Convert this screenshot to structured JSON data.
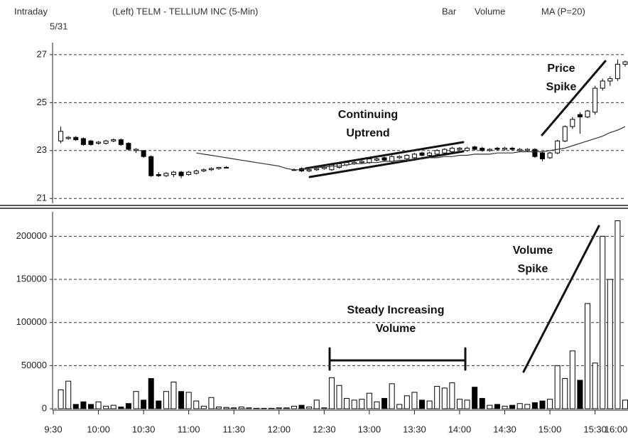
{
  "header": {
    "mode": "Intraday",
    "date": "5/31",
    "symbol": "(Left) TELM - TELLIUM INC (5-Min)",
    "style": "Bar",
    "study": "Volume",
    "ma": "MA (P=20)"
  },
  "chart_data": [
    {
      "type": "candlestick",
      "annotations": [
        [
          "Price",
          "Spike"
        ],
        [
          "Continuing",
          "Uptrend"
        ]
      ],
      "x": [
        5,
        10,
        15,
        20,
        25,
        30,
        35,
        40,
        45,
        50,
        55,
        60,
        65,
        70,
        75,
        80,
        85,
        90,
        95,
        100,
        105,
        110,
        115,
        120,
        125,
        130,
        135,
        140,
        145,
        150,
        155,
        160,
        165,
        170,
        175,
        180,
        185,
        190,
        195,
        200,
        205,
        210,
        215,
        220,
        225,
        230,
        235,
        240,
        245,
        250,
        255,
        260,
        265,
        270,
        275,
        280,
        285,
        290,
        295,
        300,
        305,
        310,
        315,
        320,
        325,
        330,
        335,
        340,
        345,
        350,
        355,
        360,
        365,
        370,
        375,
        380
      ],
      "open": [
        23.4,
        23.5,
        23.55,
        23.5,
        23.4,
        23.3,
        23.3,
        23.4,
        23.45,
        23.3,
        23.0,
        23.0,
        22.75,
        22.0,
        21.95,
        22.0,
        22.1,
        22.0,
        22.05,
        22.15,
        22.2,
        22.25,
        22.3,
        null,
        null,
        null,
        null,
        null,
        null,
        null,
        null,
        22.2,
        22.25,
        22.15,
        22.2,
        22.25,
        22.2,
        22.3,
        22.4,
        22.45,
        22.5,
        22.5,
        22.6,
        22.7,
        22.55,
        22.7,
        22.65,
        22.7,
        22.9,
        22.8,
        22.85,
        22.9,
        22.95,
        23.05,
        23.0,
        23.15,
        23.1,
        23.0,
        23.1,
        23.05,
        23.1,
        23.0,
        23.0,
        23.05,
        22.9,
        22.7,
        22.9,
        23.4,
        24.0,
        24.5,
        24.4,
        24.6,
        25.6,
        25.9,
        26.0,
        26.6
      ],
      "high": [
        24.0,
        23.6,
        23.6,
        23.55,
        23.45,
        23.4,
        23.45,
        23.5,
        23.5,
        23.35,
        23.1,
        23.0,
        22.8,
        22.1,
        22.1,
        22.15,
        22.15,
        22.15,
        22.2,
        22.25,
        22.3,
        22.3,
        22.35,
        null,
        null,
        null,
        null,
        null,
        null,
        null,
        null,
        22.25,
        22.3,
        22.25,
        22.3,
        22.35,
        22.45,
        22.5,
        22.55,
        22.6,
        22.6,
        22.7,
        22.7,
        22.75,
        22.8,
        22.8,
        22.85,
        22.9,
        22.95,
        22.95,
        23.05,
        23.1,
        23.15,
        23.15,
        23.15,
        23.2,
        23.15,
        23.1,
        23.15,
        23.15,
        23.15,
        23.1,
        23.1,
        23.1,
        22.95,
        22.95,
        23.45,
        24.05,
        24.4,
        24.6,
        24.7,
        25.7,
        26.0,
        26.1,
        26.8,
        26.75
      ],
      "low": [
        23.3,
        23.45,
        23.4,
        23.2,
        23.2,
        23.25,
        23.25,
        23.35,
        23.2,
        23.0,
        22.9,
        22.7,
        21.9,
        21.9,
        21.9,
        21.9,
        21.85,
        21.95,
        22.0,
        22.1,
        22.15,
        22.2,
        22.25,
        null,
        null,
        null,
        null,
        null,
        null,
        null,
        null,
        22.15,
        22.1,
        22.1,
        22.15,
        22.2,
        22.15,
        22.25,
        22.35,
        22.4,
        22.45,
        22.45,
        22.55,
        22.55,
        22.5,
        22.65,
        22.6,
        22.65,
        22.75,
        22.75,
        22.8,
        22.85,
        22.9,
        23.0,
        22.95,
        23.0,
        22.95,
        22.95,
        23.0,
        23.0,
        23.0,
        22.95,
        22.95,
        22.7,
        22.55,
        22.65,
        22.85,
        23.35,
        23.9,
        23.7,
        24.35,
        24.5,
        25.5,
        25.7,
        25.9,
        26.5
      ],
      "close": [
        23.8,
        23.55,
        23.45,
        23.25,
        23.25,
        23.35,
        23.4,
        23.45,
        23.25,
        23.05,
        23.05,
        22.75,
        21.95,
        21.95,
        22.05,
        22.1,
        21.95,
        22.1,
        22.15,
        22.2,
        22.25,
        22.3,
        22.3,
        null,
        null,
        null,
        null,
        null,
        null,
        null,
        null,
        22.2,
        22.15,
        22.2,
        22.25,
        22.3,
        22.4,
        22.45,
        22.5,
        22.5,
        22.55,
        22.65,
        22.65,
        22.6,
        22.75,
        22.75,
        22.8,
        22.85,
        22.8,
        22.9,
        23.0,
        23.05,
        23.1,
        23.1,
        23.1,
        23.05,
        23.0,
        23.05,
        23.05,
        23.1,
        23.05,
        23.05,
        23.05,
        22.75,
        22.65,
        22.9,
        23.4,
        24.0,
        24.3,
        24.4,
        24.65,
        25.6,
        25.9,
        26.0,
        26.6,
        26.7
      ],
      "ma": [
        null,
        null,
        null,
        null,
        null,
        null,
        null,
        null,
        null,
        null,
        null,
        null,
        null,
        null,
        null,
        null,
        null,
        null,
        22.9,
        22.85,
        22.8,
        22.75,
        22.7,
        22.65,
        22.6,
        22.55,
        22.5,
        22.45,
        22.4,
        22.35,
        22.25,
        22.2,
        22.2,
        22.25,
        22.3,
        22.3,
        22.35,
        22.35,
        22.4,
        22.45,
        22.45,
        22.5,
        22.5,
        22.55,
        22.55,
        22.6,
        22.6,
        22.65,
        22.65,
        22.7,
        22.7,
        22.75,
        22.75,
        22.8,
        22.8,
        22.85,
        22.85,
        22.85,
        22.9,
        22.9,
        22.9,
        22.95,
        22.95,
        22.95,
        22.95,
        23.0,
        23.05,
        23.1,
        23.2,
        23.3,
        23.4,
        23.5,
        23.6,
        23.75,
        23.85,
        24.0
      ],
      "up_color": "#ffffff",
      "down_color": "#000000",
      "ma_color": "#333333",
      "xlim": [
        0,
        380
      ],
      "ylim": [
        20.8,
        27.5
      ],
      "yticks": [
        21,
        23,
        25,
        27
      ],
      "grid": true
    },
    {
      "type": "bar",
      "annotations": [
        [
          "Volume",
          "Spike"
        ],
        [
          "Steady Increasing",
          "Volume"
        ]
      ],
      "x": [
        5,
        10,
        15,
        20,
        25,
        30,
        35,
        40,
        45,
        50,
        55,
        60,
        65,
        70,
        75,
        80,
        85,
        90,
        95,
        100,
        105,
        110,
        115,
        120,
        125,
        130,
        135,
        140,
        145,
        150,
        155,
        160,
        165,
        170,
        175,
        180,
        185,
        190,
        195,
        200,
        205,
        210,
        215,
        220,
        225,
        230,
        235,
        240,
        245,
        250,
        255,
        260,
        265,
        270,
        275,
        280,
        285,
        290,
        295,
        300,
        305,
        310,
        315,
        320,
        325,
        330,
        335,
        340,
        345,
        350,
        355,
        360,
        365,
        370,
        375,
        380
      ],
      "values": [
        22000,
        32000,
        5000,
        8000,
        5000,
        8000,
        3000,
        4000,
        2000,
        6000,
        20000,
        10000,
        35000,
        9000,
        20000,
        31000,
        20000,
        19000,
        9000,
        3000,
        13000,
        2000,
        1500,
        1000,
        2000,
        1000,
        500,
        500,
        500,
        1000,
        1000,
        3000,
        4000,
        2000,
        10000,
        1000,
        36000,
        27000,
        12000,
        10000,
        11000,
        18000,
        8000,
        12000,
        29000,
        5000,
        15000,
        19000,
        10000,
        9000,
        26000,
        24000,
        30000,
        11000,
        10000,
        25000,
        12000,
        4000,
        5000,
        3000,
        4000,
        6000,
        5000,
        7000,
        9000,
        11000,
        50000,
        35000,
        67000,
        33000,
        122000,
        53000,
        200000,
        150000,
        218000,
        10000
      ],
      "xlim": [
        0,
        380
      ],
      "ylim": [
        0,
        230000
      ],
      "yticks": [
        0,
        50000,
        100000,
        150000,
        200000
      ],
      "grid": true,
      "xticks": [
        {
          "value": 0,
          "label": "9:30"
        },
        {
          "value": 30,
          "label": "10:00"
        },
        {
          "value": 60,
          "label": "10:30"
        },
        {
          "value": 90,
          "label": "11:00"
        },
        {
          "value": 120,
          "label": "11:30"
        },
        {
          "value": 150,
          "label": "12:00"
        },
        {
          "value": 180,
          "label": "12:30"
        },
        {
          "value": 210,
          "label": "13:00"
        },
        {
          "value": 240,
          "label": "13:30"
        },
        {
          "value": 270,
          "label": "14:00"
        },
        {
          "value": 300,
          "label": "14:30"
        },
        {
          "value": 330,
          "label": "15:00"
        },
        {
          "value": 360,
          "label": "15:30"
        },
        {
          "value": 390,
          "label": "16:00"
        }
      ]
    }
  ]
}
